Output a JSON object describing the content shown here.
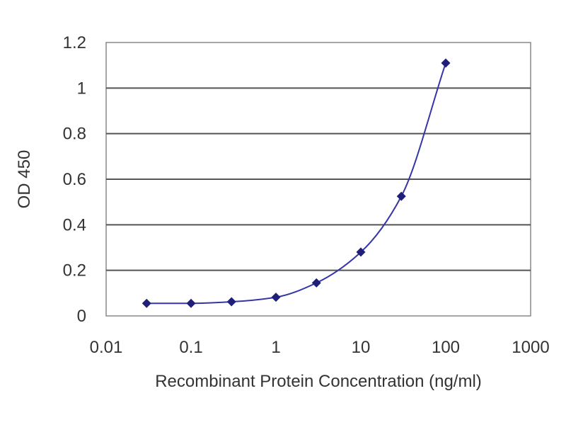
{
  "chart_data": {
    "type": "scatter",
    "title": "",
    "xlabel": "Recombinant Protein Concentration (ng/ml)",
    "ylabel": "OD 450",
    "x_scale": "log",
    "xlim": [
      0.01,
      1000
    ],
    "ylim": [
      0,
      1.2
    ],
    "x_ticks": [
      0.01,
      0.1,
      1,
      10,
      100,
      1000
    ],
    "x_tick_labels": [
      "0.01",
      "0.1",
      "1",
      "10",
      "100",
      "1000"
    ],
    "y_ticks": [
      0,
      0.2,
      0.4,
      0.6,
      0.8,
      1,
      1.2
    ],
    "y_tick_labels": [
      "0",
      "0.2",
      "0.4",
      "0.6",
      "0.8",
      "1",
      "1.2"
    ],
    "grid": "horizontal",
    "legend": "none",
    "series": [
      {
        "x": [
          0.03,
          0.1,
          0.3,
          1,
          3,
          10,
          30,
          100
        ],
        "y": [
          0.055,
          0.055,
          0.062,
          0.082,
          0.145,
          0.28,
          0.525,
          1.11
        ],
        "fit_curve": true
      }
    ],
    "colors": {
      "series": "#1f1f7a",
      "curve": "#3535a8",
      "grid": "#555555",
      "frame": "#888888"
    }
  }
}
